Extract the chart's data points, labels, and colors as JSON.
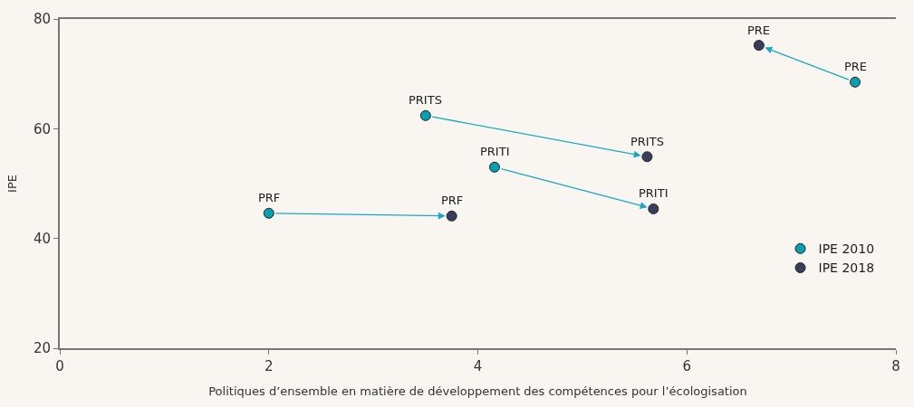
{
  "chart_data": {
    "type": "scatter",
    "xlabel": "Politiques d’ensemble en matière de développement des compétences pour l’écologisation",
    "ylabel": "IPE",
    "series": [
      {
        "name": "IPE 2010",
        "color": "#0a9fb0",
        "x": [
          2.0,
          3.5,
          4.16,
          7.61
        ],
        "values": [
          44.6,
          62.4,
          53.0,
          68.5
        ]
      },
      {
        "name": "IPE 2018",
        "color": "#3b3d5c",
        "x": [
          3.75,
          5.62,
          5.68,
          6.69
        ],
        "values": [
          44.1,
          54.9,
          45.4,
          75.2
        ]
      }
    ],
    "annotations": [
      {
        "text": "PRF",
        "x": 2.0,
        "y": 44.6
      },
      {
        "text": "PRITS",
        "x": 3.5,
        "y": 62.4
      },
      {
        "text": "PRITI",
        "x": 4.16,
        "y": 53.0
      },
      {
        "text": "PRE",
        "x": 7.61,
        "y": 68.5
      },
      {
        "text": "PRF",
        "x": 3.75,
        "y": 44.1
      },
      {
        "text": "PRITS",
        "x": 5.62,
        "y": 54.9
      },
      {
        "text": "PRITI",
        "x": 5.68,
        "y": 45.4
      },
      {
        "text": "PRE",
        "x": 6.69,
        "y": 75.2
      }
    ],
    "xlim": [
      0,
      8
    ],
    "xticks": [
      0,
      2,
      4,
      6,
      8
    ],
    "ylim": [
      20,
      80
    ],
    "yticks": [
      20,
      40,
      60,
      80
    ],
    "grid": false,
    "legend": "bottom right",
    "marker": "circle"
  }
}
